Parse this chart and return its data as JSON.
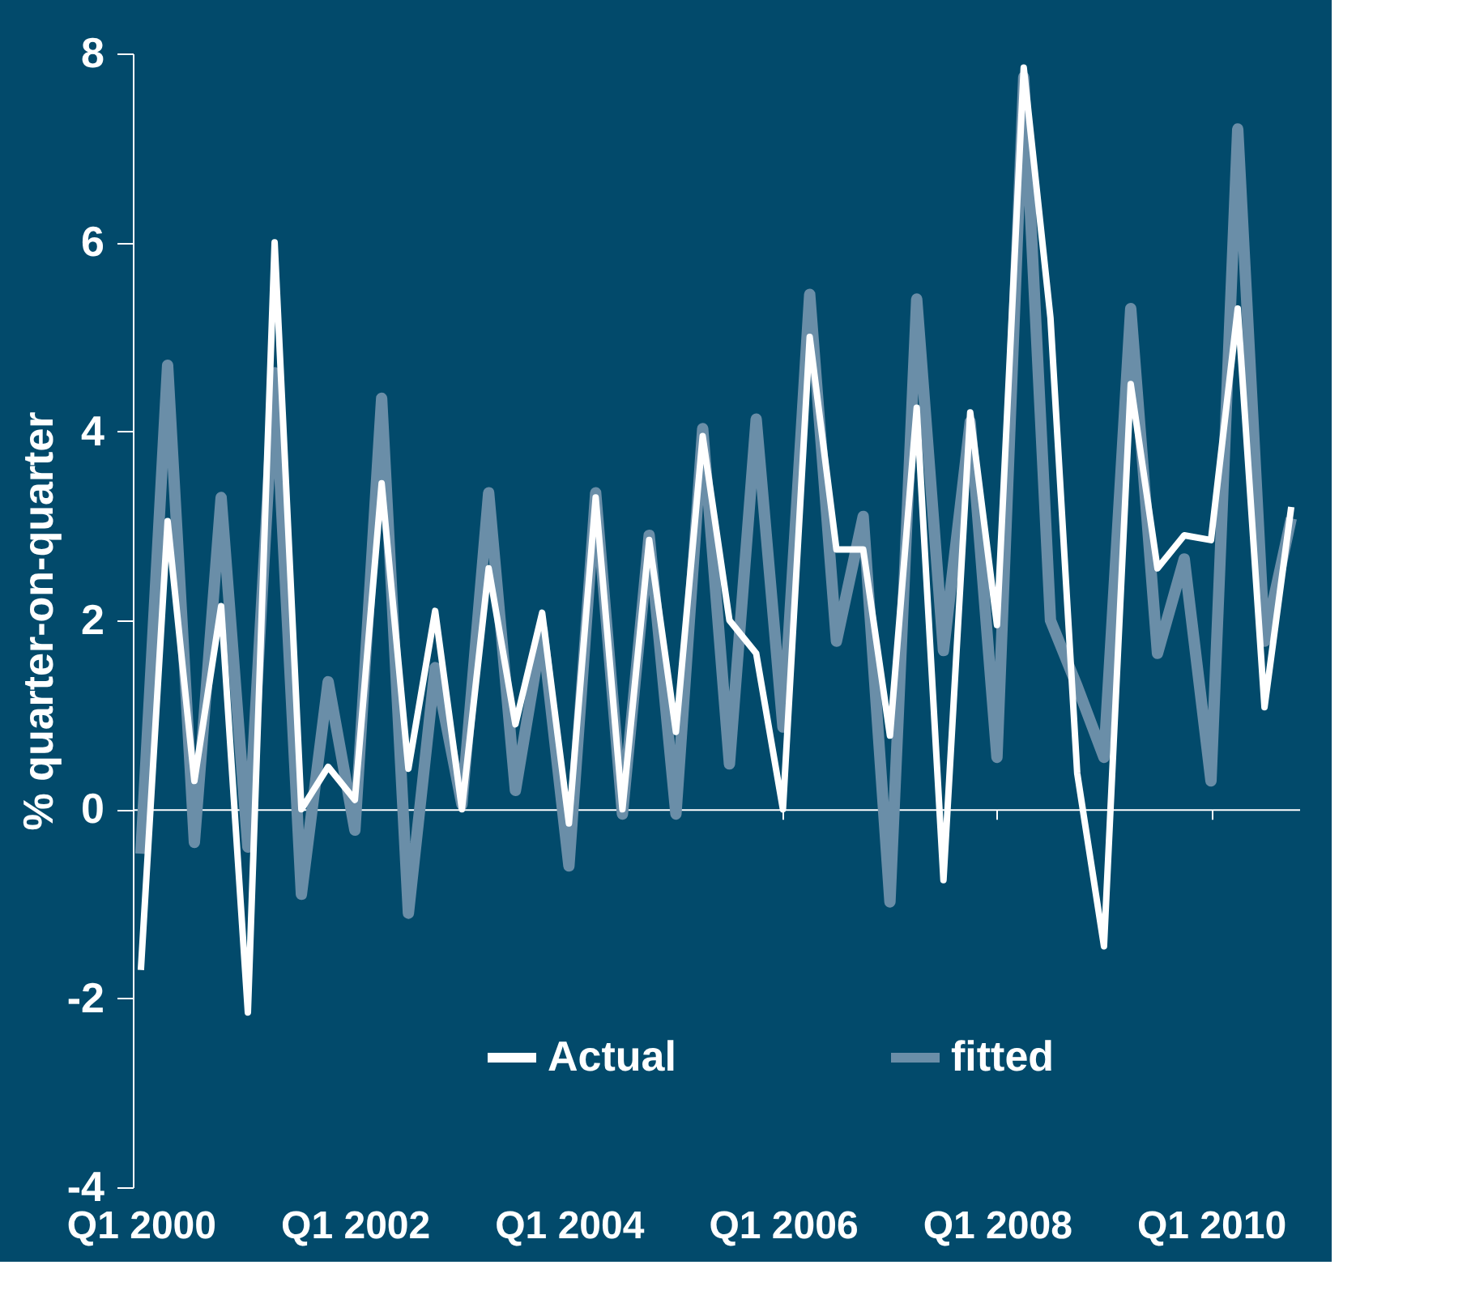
{
  "chart_data": {
    "type": "line",
    "ylabel": "% quarter-on-quarter",
    "categories": [
      "Q1 2000",
      null,
      null,
      null,
      null,
      null,
      null,
      null,
      "Q1 2002",
      null,
      null,
      null,
      null,
      null,
      null,
      null,
      "Q1 2004",
      null,
      null,
      null,
      null,
      null,
      null,
      null,
      "Q1 2006",
      null,
      null,
      null,
      null,
      null,
      null,
      null,
      "Q1 2008",
      null,
      null,
      null,
      null,
      null,
      null,
      null,
      "Q1 2010",
      null,
      null,
      null
    ],
    "series": [
      {
        "name": "Actual",
        "color": "#ffffff",
        "values": [
          -1.7,
          3.05,
          0.3,
          2.15,
          -2.15,
          6.0,
          0.0,
          0.45,
          0.1,
          3.45,
          0.43,
          2.1,
          0.0,
          2.55,
          0.9,
          2.08,
          -0.15,
          3.3,
          0.0,
          2.85,
          0.82,
          3.95,
          2.0,
          1.65,
          0.0,
          5.0,
          2.75,
          2.75,
          0.78,
          4.25,
          -0.75,
          4.2,
          1.95,
          7.85,
          5.2,
          0.38,
          -1.45,
          4.5,
          2.55,
          2.9,
          2.85,
          5.3,
          1.08,
          3.2
        ]
      },
      {
        "name": "fitted",
        "color": "#6a8ea8",
        "values": [
          -0.47,
          4.7,
          -0.35,
          3.3,
          -0.4,
          4.62,
          -0.9,
          1.35,
          -0.22,
          4.35,
          -1.1,
          1.5,
          0.05,
          3.35,
          0.2,
          1.9,
          -0.6,
          3.35,
          -0.05,
          2.9,
          -0.05,
          4.03,
          0.48,
          4.13,
          0.87,
          5.45,
          1.78,
          3.1,
          -0.98,
          5.4,
          1.68,
          4.1,
          0.55,
          7.75,
          2.0,
          1.3,
          0.55,
          5.3,
          1.65,
          2.65,
          0.3,
          7.2,
          1.78,
          3.08
        ]
      }
    ],
    "ylim": [
      -4,
      8
    ],
    "yticks": [
      -4,
      -2,
      0,
      2,
      4,
      6,
      8
    ],
    "legend": "bottom",
    "marker": "none",
    "line_style": "solid"
  }
}
